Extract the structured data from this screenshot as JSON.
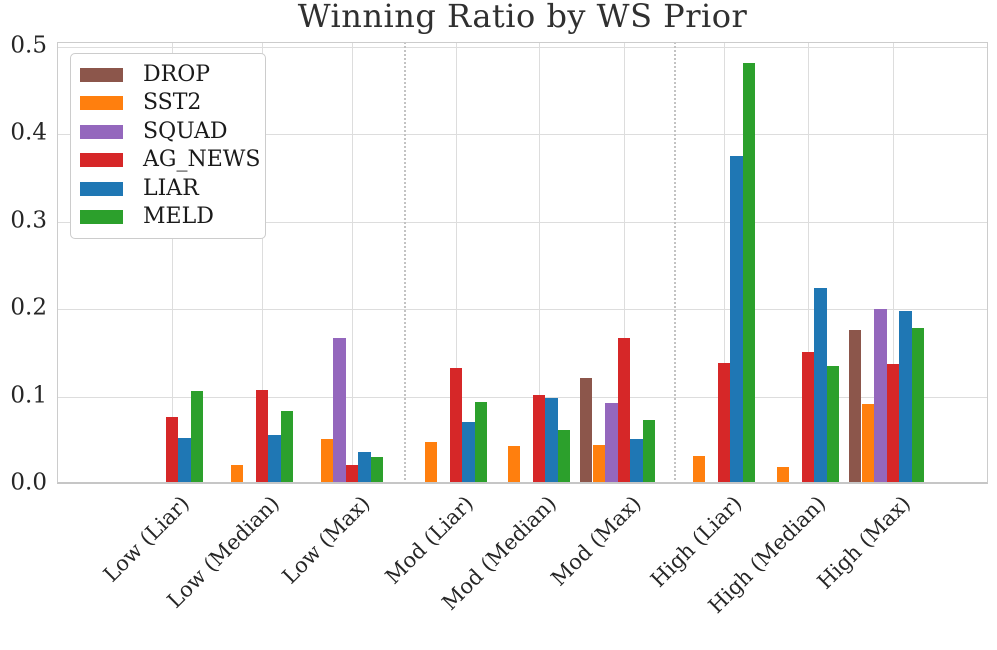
{
  "figure": {
    "title": "Winning Ratio by WS Prior"
  },
  "axes": {
    "y_tick_labels": [
      "0.0",
      "0.1",
      "0.2",
      "0.3",
      "0.4",
      "0.5"
    ],
    "x_tick_labels": [
      "Low (Liar)",
      "Low (Median)",
      "Low (Max)",
      "Mod (Liar)",
      "Mod (Median)",
      "Mod (Max)",
      "High (Liar)",
      "High (Median)",
      "High (Max)"
    ]
  },
  "chart_data": {
    "type": "bar",
    "title": "Winning Ratio by WS Prior",
    "xlabel": "",
    "ylabel": "",
    "ylim": [
      0,
      0.5
    ],
    "grid": true,
    "legend_position": "upper left",
    "categories": [
      "Low (Liar)",
      "Low (Median)",
      "Low (Max)",
      "Mod (Liar)",
      "Mod (Median)",
      "Mod (Max)",
      "High (Liar)",
      "High (Median)",
      "High (Max)"
    ],
    "cluster_separators_after_index": [
      2,
      5
    ],
    "series": [
      {
        "name": "DROP",
        "color": "#8c564b",
        "values": [
          0,
          0,
          0,
          0,
          0,
          0.121,
          0,
          0,
          0.176
        ]
      },
      {
        "name": "SST2",
        "color": "#ff7f0e",
        "values": [
          0,
          0.022,
          0.051,
          0.048,
          0.044,
          0.045,
          0.032,
          0.019,
          0.092
        ]
      },
      {
        "name": "SQUAD",
        "color": "#9467bd",
        "values": [
          0,
          0,
          0.167,
          0,
          0,
          0.093,
          0,
          0,
          0.2
        ]
      },
      {
        "name": "AG_NEWS",
        "color": "#d62728",
        "values": [
          0.077,
          0.108,
          0.022,
          0.133,
          0.102,
          0.167,
          0.138,
          0.151,
          0.137
        ]
      },
      {
        "name": "LIAR",
        "color": "#1f77b4",
        "values": [
          0.053,
          0.056,
          0.037,
          0.071,
          0.098,
          0.051,
          0.375,
          0.224,
          0.198
        ]
      },
      {
        "name": "MELD",
        "color": "#2ca02c",
        "values": [
          0.106,
          0.084,
          0.031,
          0.094,
          0.062,
          0.073,
          0.482,
          0.135,
          0.178
        ]
      }
    ]
  }
}
